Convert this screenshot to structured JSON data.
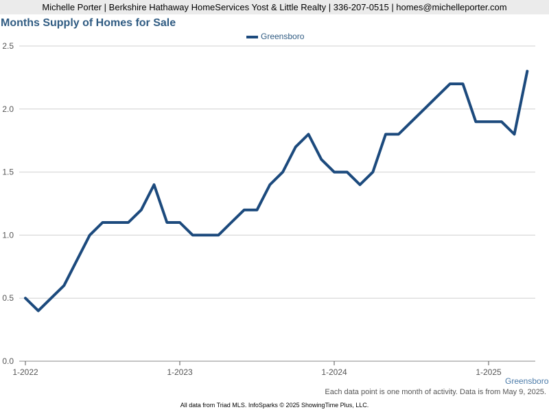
{
  "header": {
    "text": "Michelle Porter | Berkshire Hathaway HomeServices Yost & Little Realty | 336-207-0515 | homes@michelleporter.com"
  },
  "colors": {
    "series": "#1c4a7d",
    "title": "#2f5b82",
    "grid": "#d0d0d0",
    "header_bg": "#ebebeb"
  },
  "chart_data": {
    "type": "line",
    "title": "Months Supply of Homes for Sale",
    "xlabel": "",
    "ylabel": "",
    "ylim": [
      0,
      2.5
    ],
    "yticks": [
      "0.0",
      "0.5",
      "1.0",
      "1.5",
      "2.0",
      "2.5"
    ],
    "xticks": [
      "1-2022",
      "1-2023",
      "1-2024",
      "1-2025"
    ],
    "grid": true,
    "legend_position": "top-center",
    "x": [
      "2022-01",
      "2022-02",
      "2022-03",
      "2022-04",
      "2022-05",
      "2022-06",
      "2022-07",
      "2022-08",
      "2022-09",
      "2022-10",
      "2022-11",
      "2022-12",
      "2023-01",
      "2023-02",
      "2023-03",
      "2023-04",
      "2023-05",
      "2023-06",
      "2023-07",
      "2023-08",
      "2023-09",
      "2023-10",
      "2023-11",
      "2023-12",
      "2024-01",
      "2024-02",
      "2024-03",
      "2024-04",
      "2024-05",
      "2024-06",
      "2024-07",
      "2024-08",
      "2024-09",
      "2024-10",
      "2024-11",
      "2024-12",
      "2025-01",
      "2025-02",
      "2025-03",
      "2025-04"
    ],
    "series": [
      {
        "name": "Greensboro",
        "values": [
          0.5,
          0.4,
          0.5,
          0.6,
          0.8,
          1.0,
          1.1,
          1.1,
          1.1,
          1.2,
          1.4,
          1.1,
          1.1,
          1.0,
          1.0,
          1.0,
          1.1,
          1.2,
          1.2,
          1.4,
          1.5,
          1.7,
          1.8,
          1.6,
          1.5,
          1.5,
          1.4,
          1.5,
          1.8,
          1.8,
          1.9,
          2.0,
          2.1,
          2.2,
          2.2,
          1.9,
          1.9,
          1.9,
          1.8,
          2.3
        ]
      }
    ],
    "series_end_label": "Greensboro"
  },
  "footnote": "Each data point is one month of activity. Data is from May 9, 2025.",
  "footer": "All data from Triad MLS. InfoSparks © 2025 ShowingTime Plus, LLC."
}
